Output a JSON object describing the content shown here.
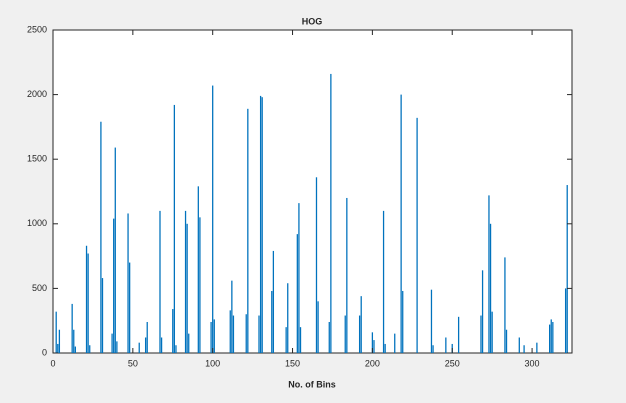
{
  "chart_data": {
    "type": "bar",
    "title": "HOG",
    "x_label": "No. of Bins",
    "x": [
      2,
      3,
      4,
      12,
      13,
      14,
      21,
      22,
      23,
      30,
      31,
      37,
      38,
      39,
      40,
      47,
      48,
      54,
      58,
      59,
      67,
      68,
      75,
      76,
      77,
      83,
      84,
      85,
      91,
      92,
      99,
      100,
      101,
      111,
      112,
      113,
      121,
      122,
      129,
      130,
      131,
      137,
      138,
      146,
      147,
      153,
      154,
      155,
      165,
      166,
      173,
      174,
      183,
      184,
      192,
      193,
      200,
      201,
      207,
      208,
      214,
      218,
      219,
      228,
      237,
      238,
      246,
      250,
      254,
      268,
      269,
      273,
      274,
      275,
      283,
      284,
      292,
      295,
      303,
      311,
      312,
      313,
      321,
      322
    ],
    "values": [
      320,
      70,
      180,
      380,
      180,
      50,
      830,
      770,
      60,
      1790,
      580,
      150,
      1040,
      1590,
      90,
      1080,
      700,
      80,
      120,
      240,
      1100,
      120,
      340,
      1920,
      60,
      1100,
      1000,
      150,
      1290,
      1050,
      240,
      2070,
      260,
      330,
      560,
      290,
      300,
      1890,
      290,
      1990,
      1980,
      480,
      790,
      200,
      540,
      920,
      1160,
      200,
      1360,
      400,
      240,
      2160,
      290,
      1200,
      290,
      440,
      160,
      100,
      1100,
      70,
      150,
      2000,
      480,
      1820,
      490,
      60,
      120,
      70,
      280,
      290,
      640,
      1220,
      1000,
      320,
      740,
      180,
      120,
      60,
      80,
      220,
      260,
      240,
      500,
      1300
    ],
    "color": "#0072bd",
    "xlim": [
      0,
      325
    ],
    "xticks": [
      0,
      50,
      100,
      150,
      200,
      250,
      300
    ],
    "ylim": [
      0,
      2500
    ],
    "yticks": [
      0,
      500,
      1000,
      1500,
      2000,
      2500
    ]
  }
}
